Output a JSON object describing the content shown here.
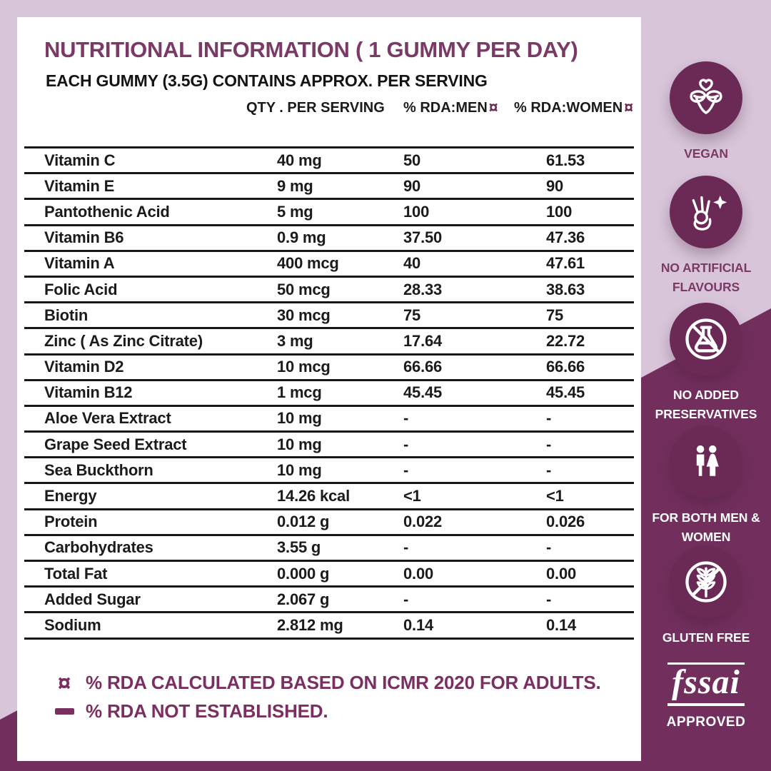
{
  "header": {
    "title": "NUTRITIONAL INFORMATION ( 1 GUMMY PER DAY)",
    "subtitle": "EACH GUMMY (3.5G) CONTAINS APPROX. PER SERVING"
  },
  "table": {
    "columns": {
      "qty": "QTY . PER SERVING",
      "men": "% RDA:MEN",
      "women": "% RDA:WOMEN",
      "rda_icon": "¤"
    },
    "rows": [
      {
        "name": "Vitamin C",
        "qty": "40 mg",
        "men": "50",
        "women": "61.53"
      },
      {
        "name": "Vitamin E",
        "qty": "9 mg",
        "men": "90",
        "women": "90"
      },
      {
        "name": "Pantothenic Acid",
        "qty": "5 mg",
        "men": "100",
        "women": "100"
      },
      {
        "name": "Vitamin B6",
        "qty": "0.9 mg",
        "men": "37.50",
        "women": "47.36"
      },
      {
        "name": "Vitamin A",
        "qty": "400 mcg",
        "men": "40",
        "women": "47.61"
      },
      {
        "name": "Folic Acid",
        "qty": "50 mcg",
        "men": "28.33",
        "women": "38.63"
      },
      {
        "name": "Biotin",
        "qty": "30 mcg",
        "men": "75",
        "women": "75"
      },
      {
        "name": "Zinc ( As Zinc Citrate)",
        "qty": "3 mg",
        "men": "17.64",
        "women": "22.72"
      },
      {
        "name": "Vitamin D2",
        "qty": "10 mcg",
        "men": "66.66",
        "women": "66.66"
      },
      {
        "name": "Vitamin B12",
        "qty": "1 mcg",
        "men": "45.45",
        "women": "45.45"
      },
      {
        "name": "Aloe Vera Extract",
        "qty": "10 mg",
        "men": "-",
        "women": "-"
      },
      {
        "name": "Grape Seed Extract",
        "qty": "10 mg",
        "men": "-",
        "women": "-"
      },
      {
        "name": "Sea Buckthorn",
        "qty": "10 mg",
        "men": "-",
        "women": "-"
      },
      {
        "name": "Energy",
        "qty": "14.26 kcal",
        "men": "<1",
        "women": "<1"
      },
      {
        "name": "Protein",
        "qty": "0.012 g",
        "men": "0.022",
        "women": "0.026"
      },
      {
        "name": "Carbohydrates",
        "qty": "3.55 g",
        "men": "-",
        "women": "-"
      },
      {
        "name": "Total Fat",
        "qty": "0.000 g",
        "men": "0.00",
        "women": "0.00"
      },
      {
        "name": "Added Sugar",
        "qty": "2.067 g",
        "men": "-",
        "women": "-"
      },
      {
        "name": "Sodium",
        "qty": "2.812 mg",
        "men": "0.14",
        "women": "0.14"
      }
    ]
  },
  "footnotes": {
    "rda_icon": "¤",
    "note1": "% RDA CALCULATED BASED ON ICMR 2020 FOR ADULTS.",
    "note2": "% RDA NOT ESTABLISHED."
  },
  "badges": [
    {
      "label": "VEGAN"
    },
    {
      "label": "NO ARTIFICIAL FLAVOURS"
    },
    {
      "label": "NO ADDED PRESERVATIVES"
    },
    {
      "label": "FOR BOTH MEN & WOMEN"
    },
    {
      "label": "GLUTEN FREE"
    },
    {
      "logo": "fssai",
      "label": "APPROVED"
    }
  ],
  "colors": {
    "accent_purple": "#7b3a66",
    "dark_background": "#722f5e",
    "lavender_background": "#d8c5da",
    "badge_circle": "#6b2a55",
    "text_black": "#1b1b1b",
    "white": "#ffffff"
  }
}
